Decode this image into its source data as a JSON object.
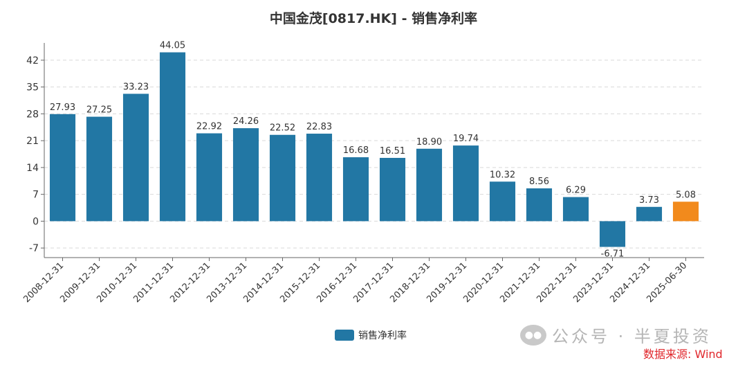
{
  "title": "中国金茂[0817.HK] - 销售净利率",
  "watermark": {
    "logo_icon": "wechat-icon",
    "text": "公众号 · 半夏投资"
  },
  "source": "数据来源: Wind",
  "colors": {
    "bar": "#2277a4",
    "highlight": "#f28a1c",
    "grid": "#d9d9d9",
    "axis": "#666666"
  },
  "legend": {
    "label": "销售净利率",
    "position": "bottom-center"
  },
  "chart_data": {
    "type": "bar",
    "categories": [
      "2008-12-31",
      "2009-12-31",
      "2010-12-31",
      "2011-12-31",
      "2012-12-31",
      "2013-12-31",
      "2014-12-31",
      "2015-12-31",
      "2016-12-31",
      "2017-12-31",
      "2018-12-31",
      "2019-12-31",
      "2020-12-31",
      "2021-12-31",
      "2022-12-31",
      "2023-12-31",
      "2024-12-31",
      "2025-06-30"
    ],
    "series": [
      {
        "name": "销售净利率",
        "values": [
          27.93,
          27.25,
          33.23,
          44.05,
          22.92,
          24.26,
          22.52,
          22.83,
          16.68,
          16.51,
          18.9,
          19.74,
          10.32,
          8.56,
          6.29,
          -6.71,
          3.73,
          5.08
        ]
      }
    ],
    "data_labels": [
      "27.93",
      "27.25",
      "33.23",
      "44.05",
      "22.92",
      "24.26",
      "22.52",
      "22.83",
      "16.68",
      "16.51",
      "18.90",
      "19.74",
      "10.32",
      "8.56",
      "6.29",
      "-6.71",
      "3.73",
      "5.08"
    ],
    "highlight_index": 17,
    "yticks": [
      -7,
      0,
      7,
      14,
      21,
      28,
      35,
      42
    ],
    "ylim": [
      -9.5,
      46.5
    ],
    "grid": true
  }
}
